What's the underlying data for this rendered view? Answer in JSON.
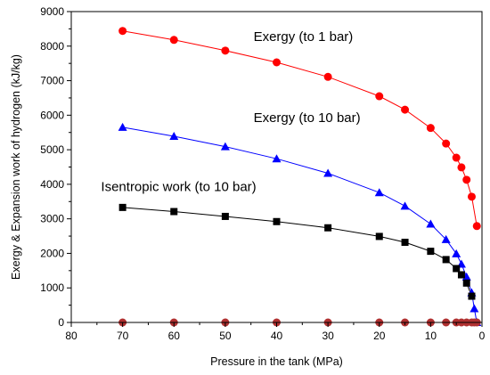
{
  "chart_data": {
    "type": "line",
    "title": "",
    "xlabel": "Pressure in the tank (MPa)",
    "ylabel": "Exergy & Expansion work of hydrogen (kJ/kg)",
    "xlim": [
      80,
      0
    ],
    "ylim": [
      0,
      9000
    ],
    "x_reversed": true,
    "grid": false,
    "legend": "none",
    "xticks": [
      80,
      70,
      60,
      50,
      40,
      30,
      20,
      10,
      0
    ],
    "yticks": [
      0,
      1000,
      2000,
      3000,
      4000,
      5000,
      6000,
      7000,
      8000,
      9000
    ],
    "xtick_labels": [
      "80",
      "70",
      "60",
      "50",
      "40",
      "30",
      "20",
      "10",
      "0"
    ],
    "ytick_labels": [
      "0",
      "1000",
      "2000",
      "3000",
      "4000",
      "5000",
      "6000",
      "7000",
      "8000",
      "9000"
    ],
    "annotations": [
      {
        "text": "Exergy (to 1 bar)",
        "x": 44.5,
        "y": 8150
      },
      {
        "text": "Exergy (to 10 bar)",
        "x": 44.5,
        "y": 5800
      },
      {
        "text": "Isentropic work (to 10 bar)",
        "x": 74.2,
        "y": 3800
      }
    ],
    "series": [
      {
        "name": "",
        "color": "#ff0000",
        "marker": "circle",
        "x": [
          70,
          60,
          50,
          40,
          30,
          20,
          15,
          10,
          7,
          5,
          4,
          3,
          2,
          1
        ],
        "y": [
          8440,
          8180,
          7870,
          7530,
          7110,
          6550,
          6160,
          5630,
          5180,
          4770,
          4490,
          4130,
          3640,
          2790
        ]
      },
      {
        "name": "",
        "color": "#0000ff",
        "marker": "triangle",
        "x": [
          70,
          60,
          50,
          40,
          30,
          20,
          15,
          10,
          7,
          5,
          4,
          3,
          2,
          1.5,
          1
        ],
        "y": [
          5650,
          5390,
          5090,
          4740,
          4320,
          3760,
          3370,
          2850,
          2400,
          1990,
          1690,
          1320,
          860,
          400,
          0
        ]
      },
      {
        "name": "",
        "color": "#000000",
        "marker": "square",
        "x": [
          70,
          60,
          50,
          40,
          30,
          20,
          15,
          10,
          7,
          5,
          4,
          3,
          2
        ],
        "y": [
          3330,
          3210,
          3070,
          2920,
          2740,
          2490,
          2320,
          2060,
          1820,
          1560,
          1380,
          1140,
          760
        ]
      },
      {
        "name": "",
        "color": "#b03030",
        "marker": "circle",
        "x": [
          70,
          60,
          50,
          40,
          30,
          20,
          15,
          10,
          7,
          5,
          4,
          3,
          2,
          1.5,
          1
        ],
        "y": [
          0,
          0,
          0,
          0,
          0,
          0,
          0,
          0,
          0,
          0,
          0,
          0,
          0,
          0,
          0
        ]
      }
    ]
  }
}
